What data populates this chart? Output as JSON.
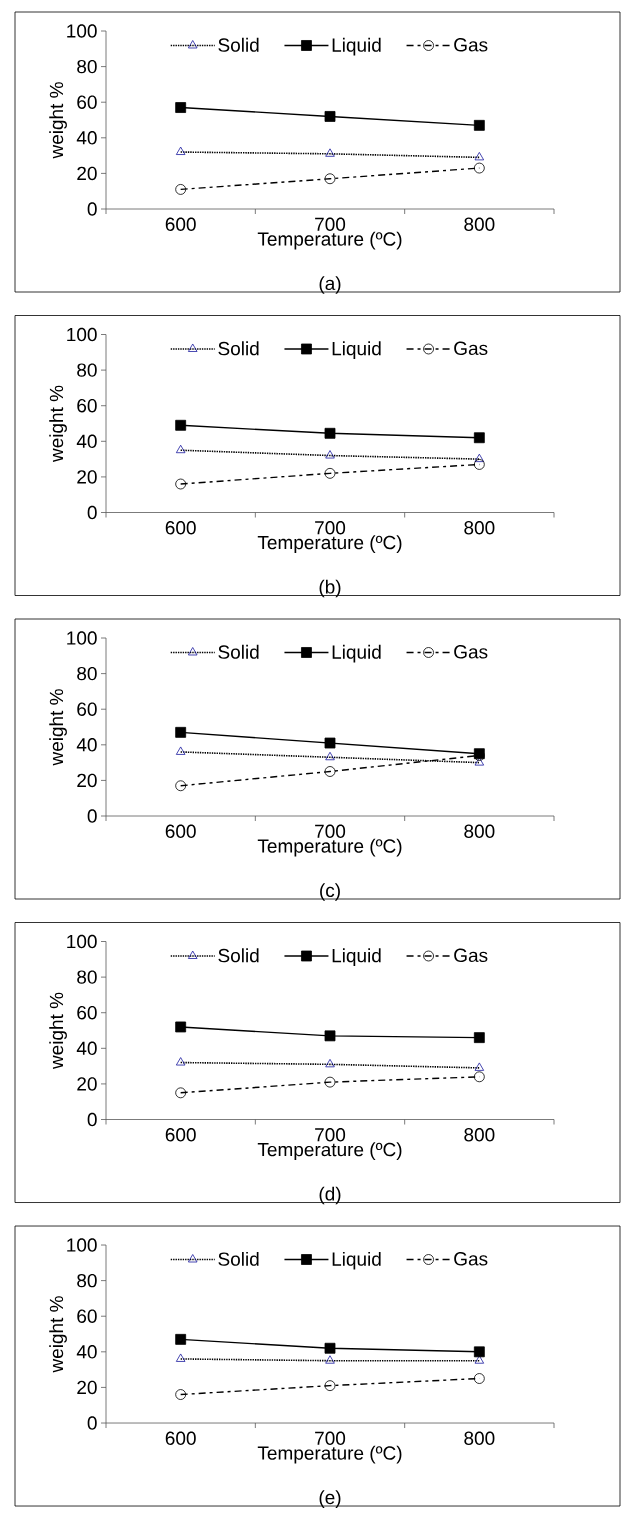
{
  "chart_data": [
    {
      "type": "line",
      "xlabel": "Temperature (ºC)",
      "ylabel": "weight %",
      "annotations": [
        "(a)"
      ],
      "categories": [
        "600",
        "700",
        "800"
      ],
      "ylim": [
        0,
        100
      ],
      "yticks": [
        0,
        20,
        40,
        60,
        80,
        100
      ],
      "legend": "top",
      "series": [
        {
          "name": "Solid",
          "color": "#1a1a9e",
          "marker": "triangle",
          "line_style": "dotted",
          "values": [
            32,
            31,
            29
          ]
        },
        {
          "name": "Liquid",
          "color": "#000000",
          "marker": "square",
          "line_style": "solid",
          "values": [
            57,
            52,
            47
          ]
        },
        {
          "name": "Gas",
          "color": "#000000",
          "marker": "circle",
          "line_style": "dashed",
          "values": [
            11,
            17,
            23
          ]
        }
      ]
    },
    {
      "type": "line",
      "xlabel": "Temperature (ºC)",
      "ylabel": "weight %",
      "annotations": [
        "(b)"
      ],
      "categories": [
        "600",
        "700",
        "800"
      ],
      "ylim": [
        0,
        100
      ],
      "yticks": [
        0,
        20,
        40,
        60,
        80,
        100
      ],
      "legend": "top",
      "series": [
        {
          "name": "Solid",
          "color": "#1a1a9e",
          "marker": "triangle",
          "line_style": "dotted",
          "values": [
            35,
            32,
            30
          ]
        },
        {
          "name": "Liquid",
          "color": "#000000",
          "marker": "square",
          "line_style": "solid",
          "values": [
            49,
            44.5,
            42
          ]
        },
        {
          "name": "Gas",
          "color": "#000000",
          "marker": "circle",
          "line_style": "dashed",
          "values": [
            16,
            22,
            27
          ]
        }
      ]
    },
    {
      "type": "line",
      "xlabel": "Temperature (ºC)",
      "ylabel": "weight %",
      "annotations": [
        "(c)"
      ],
      "categories": [
        "600",
        "700",
        "800"
      ],
      "ylim": [
        0,
        100
      ],
      "yticks": [
        0,
        20,
        40,
        60,
        80,
        100
      ],
      "legend": "top",
      "series": [
        {
          "name": "Solid",
          "color": "#1a1a9e",
          "marker": "triangle",
          "line_style": "dotted",
          "values": [
            36,
            33,
            30
          ]
        },
        {
          "name": "Liquid",
          "color": "#000000",
          "marker": "square",
          "line_style": "solid",
          "values": [
            47,
            41,
            35
          ]
        },
        {
          "name": "Gas",
          "color": "#000000",
          "marker": "circle",
          "line_style": "dashed",
          "values": [
            17,
            25,
            34
          ]
        }
      ]
    },
    {
      "type": "line",
      "xlabel": "Temperature (ºC)",
      "ylabel": "weight %",
      "annotations": [
        "(d)"
      ],
      "categories": [
        "600",
        "700",
        "800"
      ],
      "ylim": [
        0,
        100
      ],
      "yticks": [
        0,
        20,
        40,
        60,
        80,
        100
      ],
      "legend": "top",
      "series": [
        {
          "name": "Solid",
          "color": "#1a1a9e",
          "marker": "triangle",
          "line_style": "dotted",
          "values": [
            32,
            31,
            29
          ]
        },
        {
          "name": "Liquid",
          "color": "#000000",
          "marker": "square",
          "line_style": "solid",
          "values": [
            52,
            47,
            46
          ]
        },
        {
          "name": "Gas",
          "color": "#000000",
          "marker": "circle",
          "line_style": "dashed",
          "values": [
            15,
            21,
            24
          ]
        }
      ]
    },
    {
      "type": "line",
      "xlabel": "Temperature (ºC)",
      "ylabel": "weight %",
      "annotations": [
        "(e)"
      ],
      "categories": [
        "600",
        "700",
        "800"
      ],
      "ylim": [
        0,
        100
      ],
      "yticks": [
        0,
        20,
        40,
        60,
        80,
        100
      ],
      "legend": "top",
      "series": [
        {
          "name": "Solid",
          "color": "#1a1a9e",
          "marker": "triangle",
          "line_style": "dotted",
          "values": [
            36,
            35,
            35
          ]
        },
        {
          "name": "Liquid",
          "color": "#000000",
          "marker": "square",
          "line_style": "solid",
          "values": [
            47,
            42,
            40
          ]
        },
        {
          "name": "Gas",
          "color": "#000000",
          "marker": "circle",
          "line_style": "dashed",
          "values": [
            16,
            21,
            25
          ]
        }
      ]
    }
  ]
}
